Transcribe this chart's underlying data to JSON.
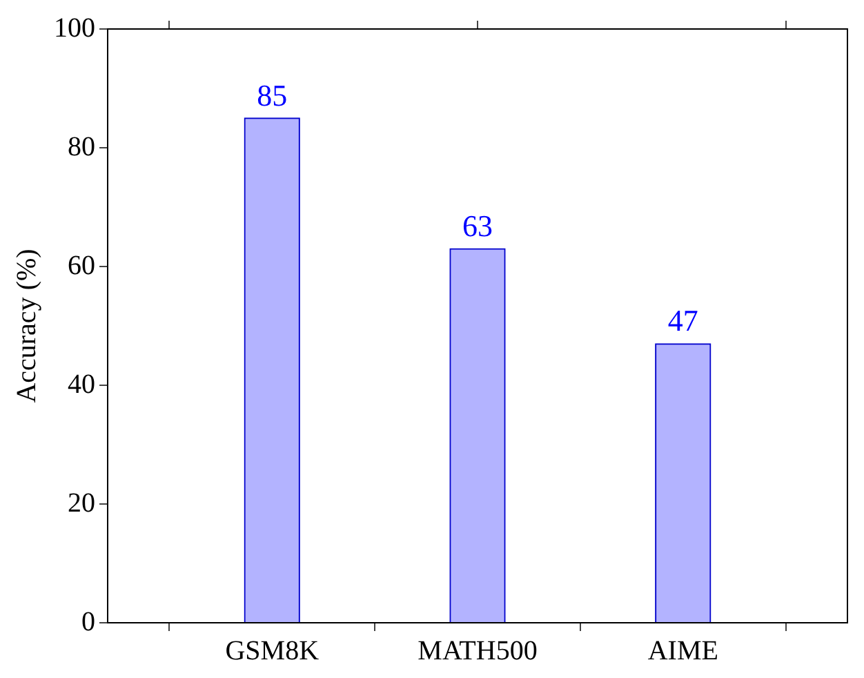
{
  "chart_data": {
    "type": "bar",
    "ylabel": "Accuracy (%)",
    "categories": [
      "GSM8K",
      "MATH500",
      "AIME"
    ],
    "values": [
      85,
      63,
      47
    ],
    "color": "#b3b3ff",
    "ylim": [
      0,
      100
    ],
    "yticks": [
      0,
      20,
      40,
      60,
      80,
      100
    ],
    "grid": false,
    "legend": false,
    "data_labels": true
  }
}
